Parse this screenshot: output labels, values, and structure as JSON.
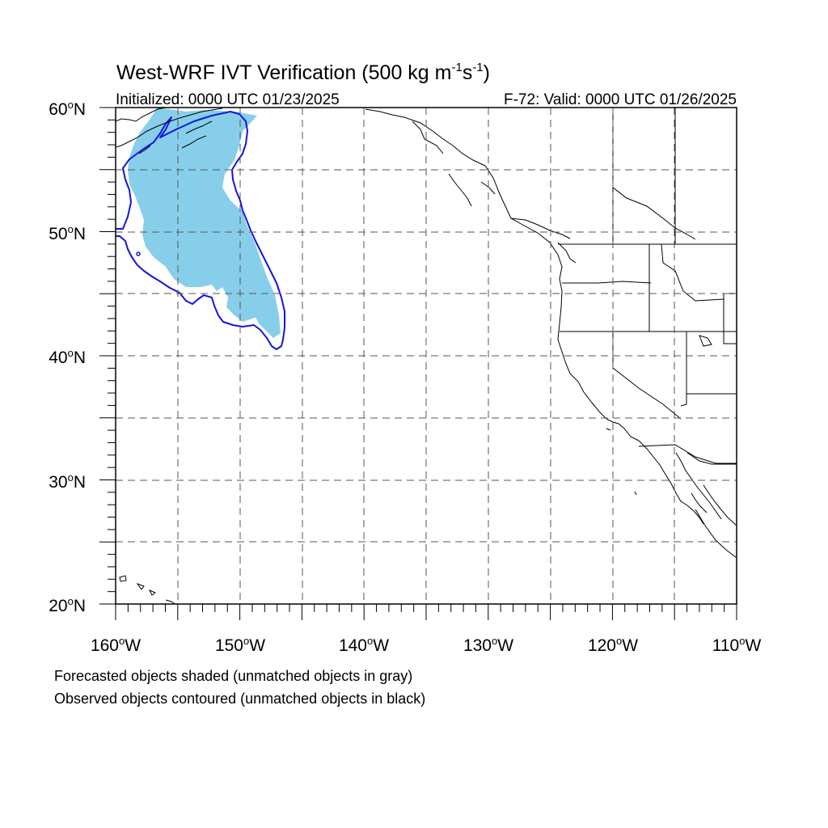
{
  "title": {
    "main": "West-WRF IVT Verification (500 kg m",
    "exp1": "-1",
    "mid": "s",
    "exp2": "-1",
    "close": ")"
  },
  "subtitle_left": "Initialized: 0000 UTC 01/23/2025",
  "subtitle_right": "F-72: Valid: 0000 UTC 01/26/2025",
  "map": {
    "projection": "lat-lon",
    "lon_range": [
      -160,
      -110
    ],
    "lat_range": [
      20,
      60
    ],
    "gridlines": "dashed every 5 degrees",
    "lat_labels": [
      {
        "deg": "60",
        "hemi": "N"
      },
      {
        "deg": "50",
        "hemi": "N"
      },
      {
        "deg": "40",
        "hemi": "N"
      },
      {
        "deg": "30",
        "hemi": "N"
      },
      {
        "deg": "20",
        "hemi": "N"
      }
    ],
    "lon_labels": [
      {
        "deg": "160",
        "hemi": "W"
      },
      {
        "deg": "150",
        "hemi": "W"
      },
      {
        "deg": "140",
        "hemi": "W"
      },
      {
        "deg": "130",
        "hemi": "W"
      },
      {
        "deg": "120",
        "hemi": "W"
      },
      {
        "deg": "110",
        "hemi": "W"
      }
    ],
    "colors": {
      "forecast_fill": "#87ceeb",
      "observed_contour": "#1414e0",
      "coastline": "#000000",
      "grid": "#555555"
    }
  },
  "legend": {
    "line1": "Forecasted objects shaded (unmatched objects in gray)",
    "line2": "Observed objects contoured (unmatched objects in black)"
  }
}
